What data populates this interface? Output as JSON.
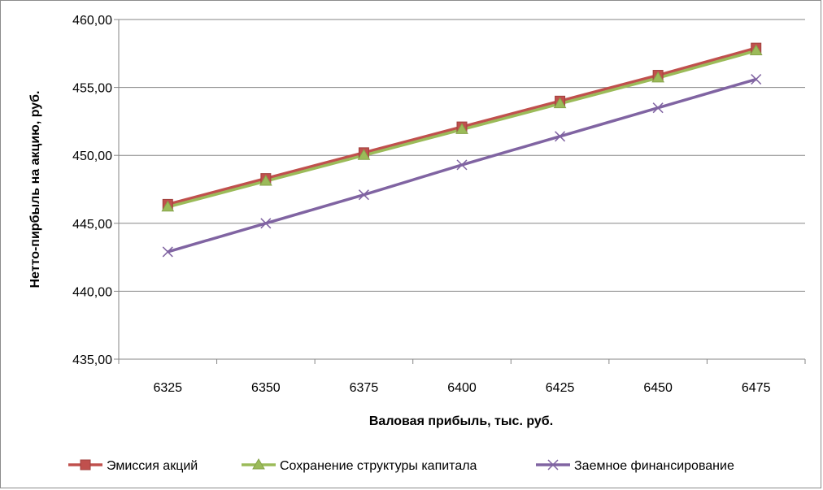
{
  "chart_data": {
    "type": "line",
    "title": "",
    "xlabel": "Валовая прибыль, тыс. руб.",
    "ylabel": "Нетто-пирбыль на акцию, руб.",
    "categories": [
      "6325",
      "6350",
      "6375",
      "6400",
      "6425",
      "6450",
      "6475"
    ],
    "ylim": [
      435,
      460
    ],
    "yticks": [
      "435,00",
      "440,00",
      "445,00",
      "450,00",
      "455,00",
      "460,00"
    ],
    "grid": "horizontal",
    "legend_position": "bottom",
    "series": [
      {
        "name": "Эмиссия акций",
        "color": "#C0504D",
        "marker": "square",
        "values": [
          446.4,
          448.3,
          450.2,
          452.1,
          454.0,
          455.9,
          457.9
        ]
      },
      {
        "name": "Сохранение структуры капитала",
        "color": "#9BBB59",
        "marker": "triangle",
        "values": [
          446.2,
          448.1,
          450.0,
          451.9,
          453.8,
          455.7,
          457.7
        ]
      },
      {
        "name": "Заемное финансирование",
        "color": "#8064A2",
        "marker": "x",
        "values": [
          442.9,
          445.0,
          447.1,
          449.3,
          451.4,
          453.5,
          455.6
        ]
      }
    ]
  }
}
